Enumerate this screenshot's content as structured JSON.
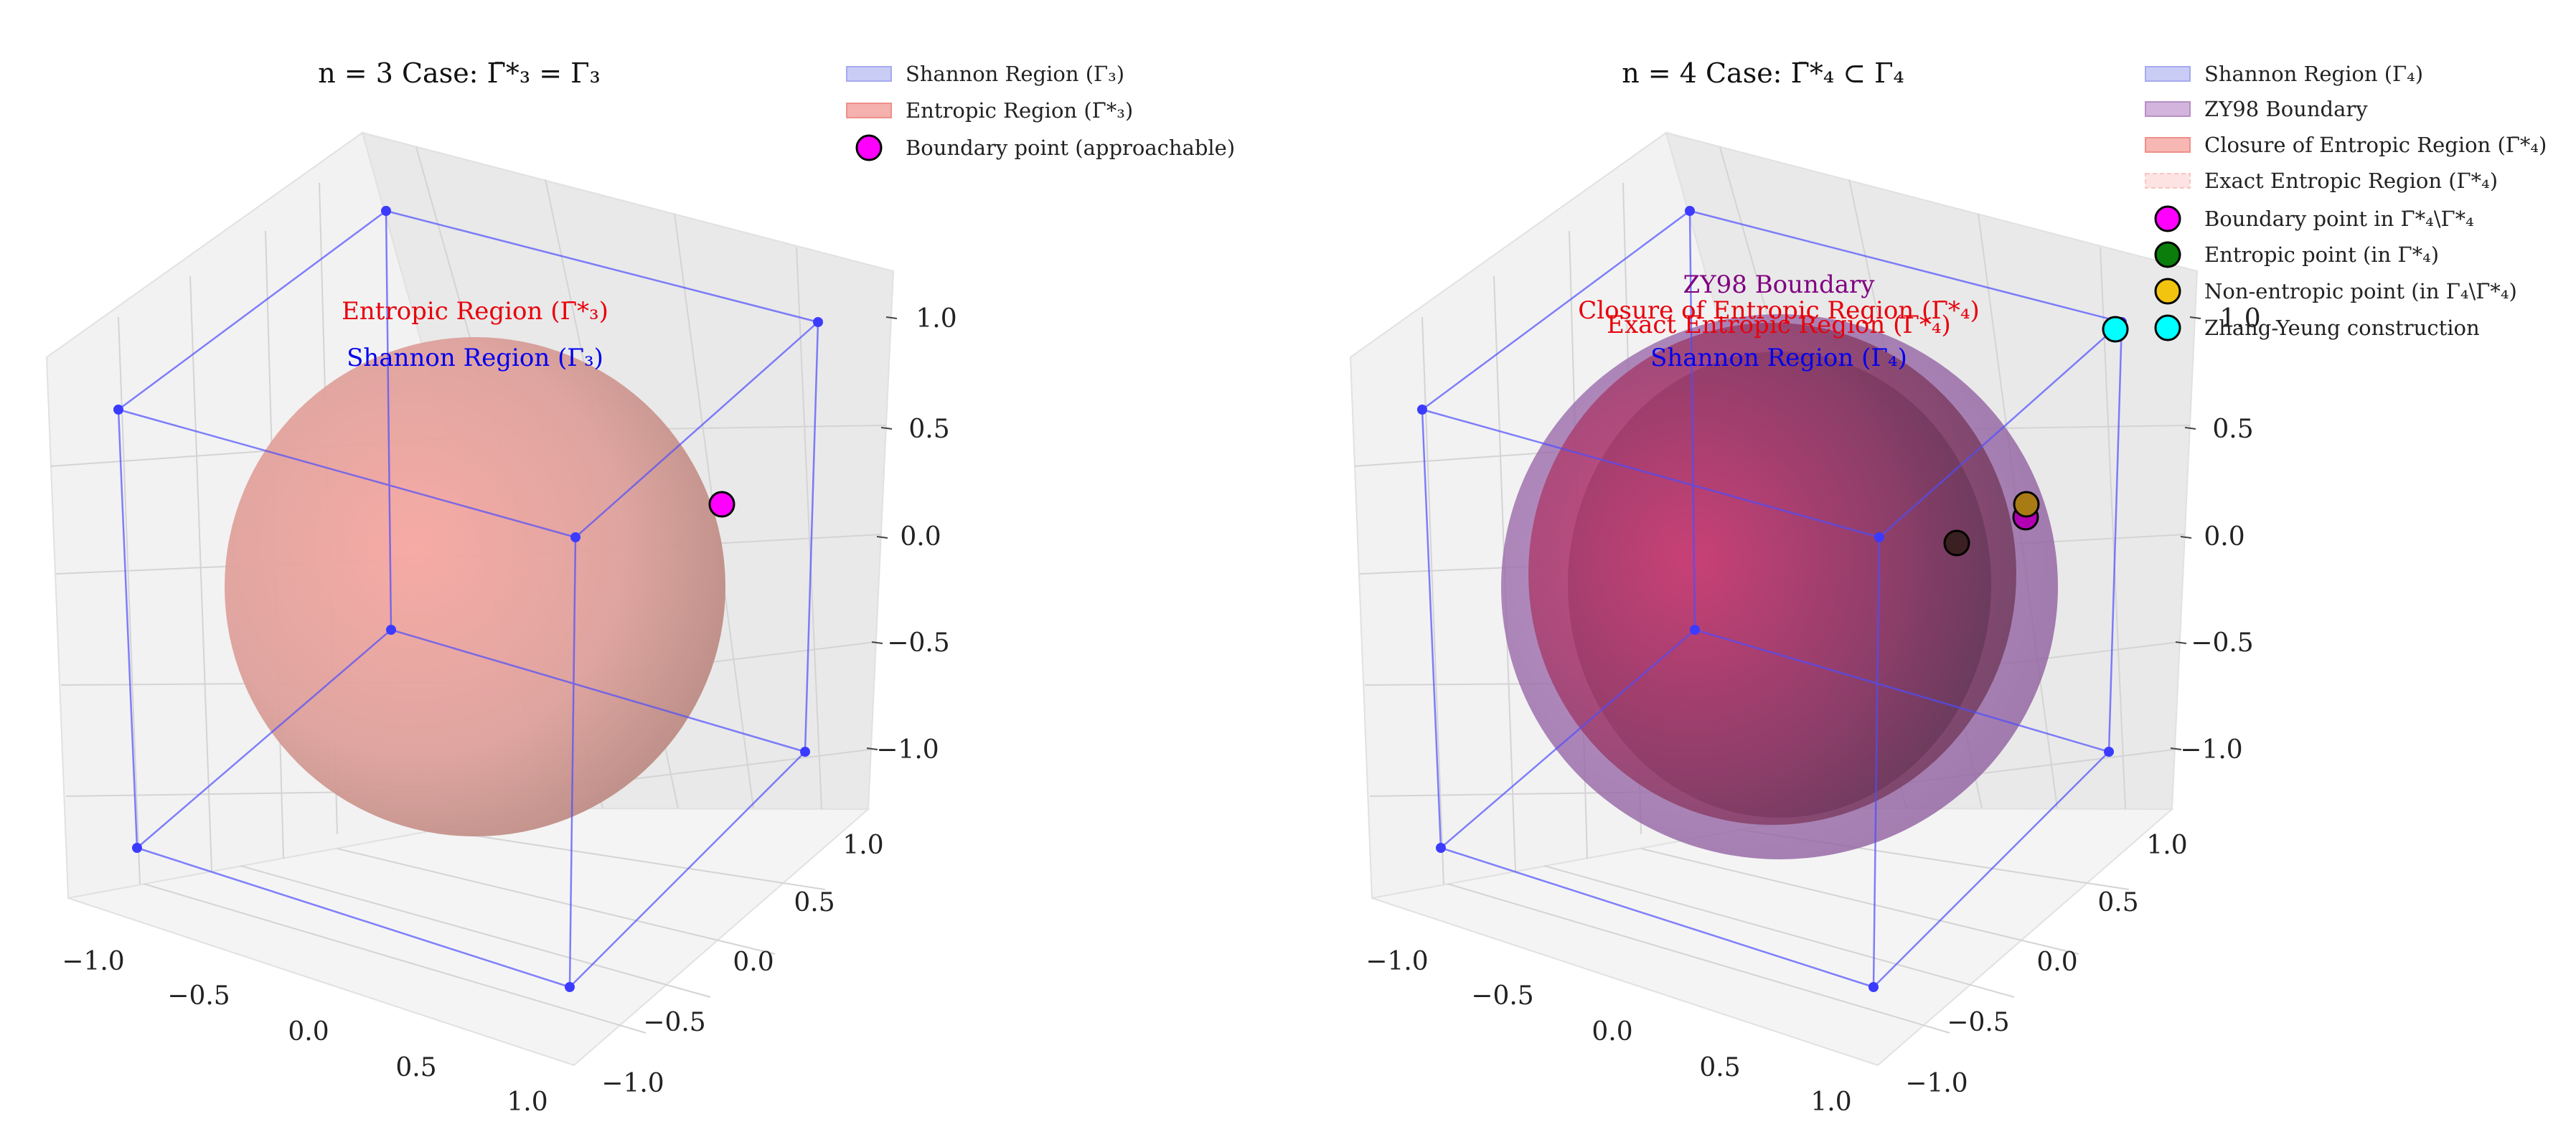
{
  "figure": {
    "panels": [
      {
        "title": "n = 3 Case: Γ̄*₃ = Γ₃",
        "legend": [
          {
            "label": "Shannon Region (Γ₃)",
            "kind": "patch",
            "color": "#c9ccf5"
          },
          {
            "label": "Entropic Region (Γ̄*₃)",
            "kind": "patch",
            "color": "#f5b1ad"
          },
          {
            "label": "Boundary point (approachable)",
            "kind": "marker",
            "color": "#ff00ff"
          }
        ],
        "annotations": [
          {
            "text": "Entropic Region (Γ̄*₃)",
            "color": "#e8000b"
          },
          {
            "text": "Shannon Region (Γ₃)",
            "color": "#0000ee"
          }
        ],
        "x_ticks": [
          "−1.0",
          "−0.5",
          "0.0",
          "0.5",
          "1.0"
        ],
        "y_ticks": [
          "−1.0",
          "−0.5",
          "0.0",
          "0.5",
          "1.0"
        ],
        "z_ticks": [
          "−1.0",
          "−0.5",
          "0.0",
          "0.5",
          "1.0"
        ]
      },
      {
        "title": "n = 4 Case: Γ̄*₄ ⊂ Γ₄",
        "legend": [
          {
            "label": "Shannon Region (Γ₄)",
            "kind": "patch",
            "color": "#c9ccf5"
          },
          {
            "label": "ZY98 Boundary",
            "kind": "patch",
            "color": "#d2b4dc"
          },
          {
            "label": "Closure of Entropic Region (Γ̄*₄)",
            "kind": "patch",
            "color": "#f7b7b3"
          },
          {
            "label": "Exact Entropic Region (Γ*₄)",
            "kind": "patch",
            "color": "#fde3e2"
          },
          {
            "label": "Boundary point in Γ̄*₄\\Γ*₄",
            "kind": "marker",
            "color": "#ff00ff"
          },
          {
            "label": "Entropic point (in Γ*₄)",
            "kind": "marker",
            "color": "#0a7d0a"
          },
          {
            "label": "Non-entropic point (in Γ₄\\Γ̄*₄)",
            "kind": "marker",
            "color": "#f2c40f"
          },
          {
            "label": "Zhang-Yeung construction",
            "kind": "marker",
            "color": "#00ffff"
          }
        ],
        "annotations": [
          {
            "text": "ZY98 Boundary",
            "color": "#800080"
          },
          {
            "text": "Closure of Entropic Region (Γ̄*₄)",
            "color": "#e8000b"
          },
          {
            "text": "Exact Entropic Region (Γ*₄)",
            "color": "#e8000b"
          },
          {
            "text": "Shannon Region (Γ₄)",
            "color": "#0000ee"
          }
        ],
        "x_ticks": [
          "−1.0",
          "−0.5",
          "0.0",
          "0.5",
          "1.0"
        ],
        "y_ticks": [
          "−1.0",
          "−0.5",
          "0.0",
          "0.5",
          "1.0"
        ],
        "z_ticks": [
          "−1.0",
          "−0.5",
          "0.0",
          "0.5",
          "1.0"
        ]
      }
    ]
  },
  "chart_data": [
    {
      "type": "scatter",
      "projection": "3d",
      "title": "n = 3 Case: Γ̄*₃ = Γ₃",
      "xlim": [
        -1.2,
        1.2
      ],
      "ylim": [
        -1.2,
        1.2
      ],
      "zlim": [
        -1.2,
        1.2
      ],
      "grid": true,
      "legend_position": "top-right",
      "series": [
        {
          "name": "Shannon Region (Γ₃)",
          "kind": "cube-wireframe",
          "half_size": 1.0,
          "color": "#4d4dff"
        },
        {
          "name": "Entropic Region (Γ̄*₃)",
          "kind": "sphere",
          "radius": 1.0,
          "color": "#f08080"
        },
        {
          "name": "Boundary point (approachable)",
          "kind": "point",
          "x": 0.7,
          "y": 0.7,
          "z": 0.1,
          "color": "#ff00ff"
        }
      ]
    },
    {
      "type": "scatter",
      "projection": "3d",
      "title": "n = 4 Case: Γ̄*₄ ⊂ Γ₄",
      "xlim": [
        -1.2,
        1.2
      ],
      "ylim": [
        -1.2,
        1.2
      ],
      "zlim": [
        -1.2,
        1.2
      ],
      "grid": true,
      "legend_position": "top-right",
      "series": [
        {
          "name": "Shannon Region (Γ₄)",
          "kind": "cube-wireframe",
          "half_size": 1.0,
          "color": "#4d4dff"
        },
        {
          "name": "ZY98 Boundary",
          "kind": "sphere",
          "radius": 1.15,
          "color": "#8e4a9e"
        },
        {
          "name": "Closure of Entropic Region (Γ̄*₄)",
          "kind": "sphere",
          "radius": 1.0,
          "color": "#f08080"
        },
        {
          "name": "Exact Entropic Region (Γ*₄)",
          "kind": "sphere",
          "radius": 0.9,
          "color": "#f4a6a6"
        },
        {
          "name": "Boundary point in Γ̄*₄\\Γ*₄",
          "kind": "point",
          "x": 0.7,
          "y": 0.7,
          "z": 0.0,
          "color": "#ff00ff"
        },
        {
          "name": "Entropic point (in Γ*₄)",
          "kind": "point",
          "x": 0.5,
          "y": 0.5,
          "z": 0.0,
          "color": "#0a7d0a"
        },
        {
          "name": "Non-entropic point (in Γ₄\\Γ̄*₄)",
          "kind": "point",
          "x": 0.8,
          "y": 0.8,
          "z": 0.1,
          "color": "#f2c40f"
        },
        {
          "name": "Zhang-Yeung construction",
          "kind": "point",
          "x": 1.0,
          "y": 1.0,
          "z": 1.0,
          "color": "#00ffff"
        }
      ]
    }
  ]
}
